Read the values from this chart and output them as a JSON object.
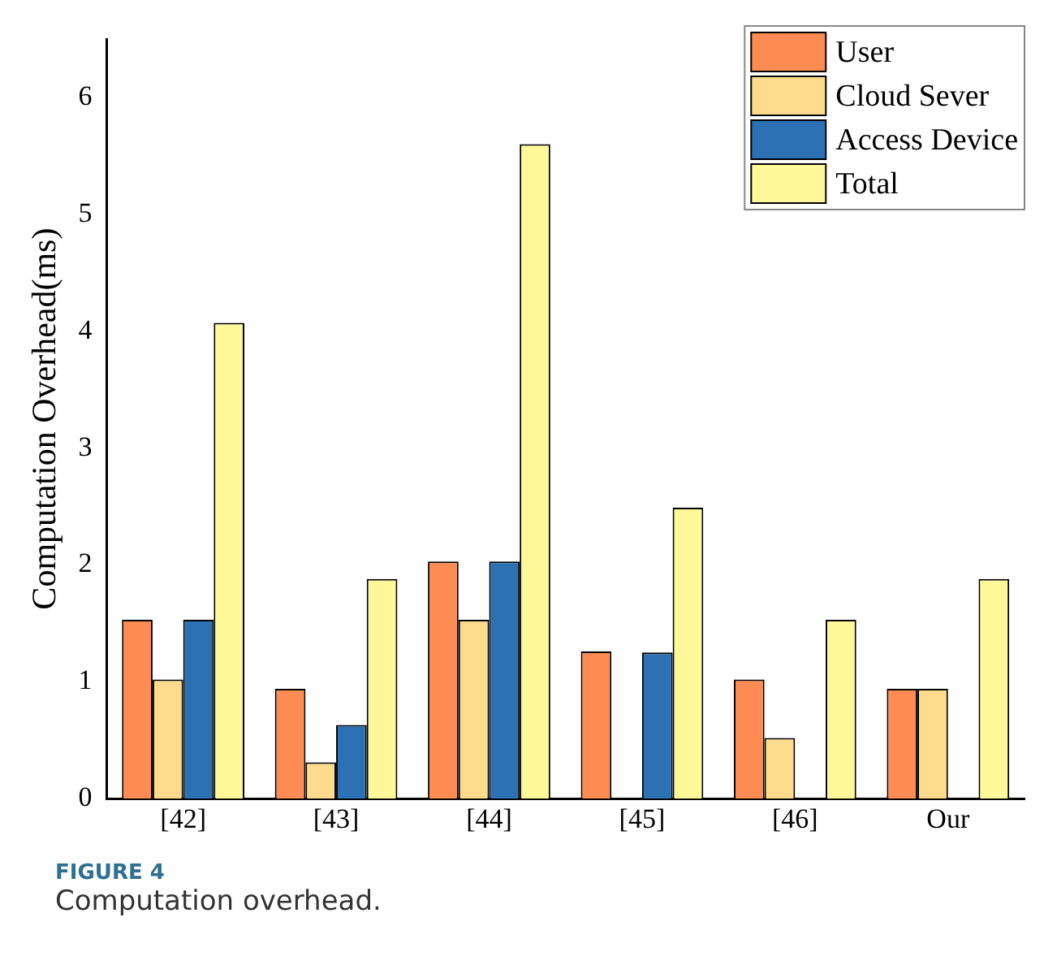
{
  "chart_data": {
    "type": "bar",
    "ylabel": "Computation Overhead(ms)",
    "categories": [
      "[42]",
      "[43]",
      "[44]",
      "[45]",
      "[46]",
      "Our"
    ],
    "series": [
      {
        "name": "User",
        "color": "#fe8c52",
        "values": [
          1.53,
          0.94,
          2.03,
          1.26,
          1.02,
          0.94
        ]
      },
      {
        "name": "Cloud Sever",
        "color": "#fdda8c",
        "values": [
          1.02,
          0.31,
          1.53,
          null,
          0.52,
          0.94
        ]
      },
      {
        "name": "Access Device",
        "color": "#2b71b4",
        "values": [
          1.53,
          0.63,
          2.03,
          1.25,
          null,
          null
        ]
      },
      {
        "name": "Total",
        "color": "#fef899",
        "values": [
          4.07,
          1.88,
          5.6,
          2.49,
          1.53,
          1.88
        ]
      }
    ],
    "ylim": [
      0,
      6.5
    ],
    "yticks": [
      0,
      1,
      2,
      3,
      4,
      5,
      6
    ],
    "grid": false,
    "legend": "top right",
    "annotations": [
      "FIGURE 4",
      "Computation overhead."
    ]
  }
}
